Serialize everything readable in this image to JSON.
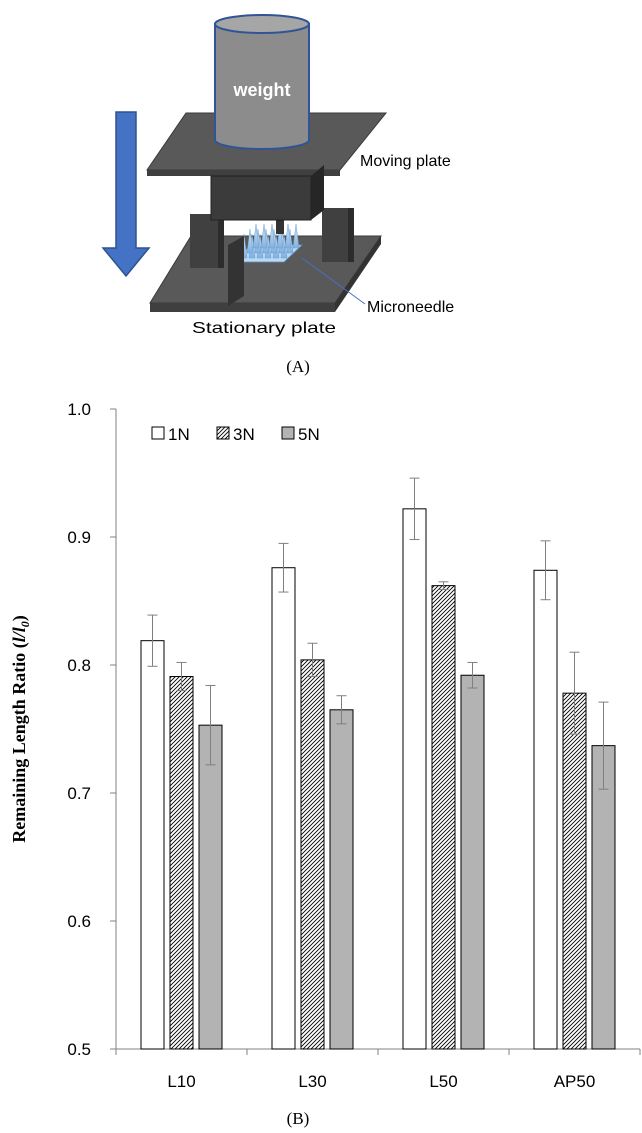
{
  "figure": {
    "panel_a": {
      "caption": "(A)",
      "labels": {
        "weight": "weight",
        "moving_plate": "Moving plate",
        "microneedle": "Microneedle",
        "stationary_plate": "Stationary plate"
      },
      "colors": {
        "arrow": "#4472c4",
        "weight_body": "#8c8c8c",
        "plate": "#555555",
        "needle": "#9dc3e6"
      }
    },
    "panel_b": {
      "caption": "(B)"
    }
  },
  "chart_data": {
    "type": "bar",
    "categories": [
      "L10",
      "L30",
      "L50",
      "AP50"
    ],
    "series": [
      {
        "name": "1N",
        "values": [
          0.819,
          0.876,
          0.922,
          0.874
        ],
        "errors": [
          0.02,
          0.019,
          0.024,
          0.023
        ],
        "fill": "white"
      },
      {
        "name": "3N",
        "values": [
          0.791,
          0.804,
          0.862,
          0.778
        ],
        "errors": [
          0.011,
          0.013,
          0.003,
          0.032
        ],
        "fill": "hatched"
      },
      {
        "name": "5N",
        "values": [
          0.753,
          0.765,
          0.792,
          0.737
        ],
        "errors": [
          0.031,
          0.011,
          0.01,
          0.034
        ],
        "fill": "#b3b3b3"
      }
    ],
    "ylabel": "Remaining Length Ratio (l/l0)",
    "xlabel": "",
    "ylim": [
      0.5,
      1.0
    ],
    "yticks": [
      "0.5",
      "0.6",
      "0.7",
      "0.8",
      "0.9",
      "1.0"
    ],
    "legend_position": "top-left",
    "grid": false
  }
}
